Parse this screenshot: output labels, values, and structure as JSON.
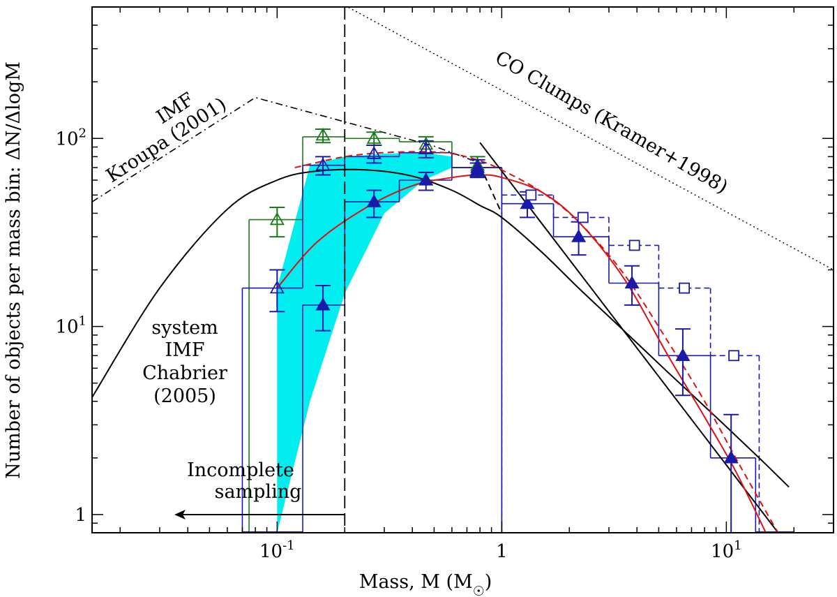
{
  "chart_data": {
    "type": "line",
    "title": "",
    "xlabel": "Mass, M (M",
    "xlabel_sub": "☉",
    "xlabel_close": ")",
    "ylabel": "Number of objects per mass bin: ΔN/ΔlogM",
    "xscale": "log",
    "yscale": "log",
    "xlim": [
      0.015,
      30
    ],
    "ylim": [
      0.8,
      500
    ],
    "x_ticks": [
      {
        "value": 0.1,
        "base": "10",
        "exp": "-1"
      },
      {
        "value": 1,
        "base": "1",
        "exp": ""
      },
      {
        "value": 10,
        "base": "10",
        "exp": "1"
      }
    ],
    "y_ticks": [
      {
        "value": 1,
        "base": "1",
        "exp": ""
      },
      {
        "value": 10,
        "base": "10",
        "exp": "1"
      },
      {
        "value": 100,
        "base": "10",
        "exp": "2"
      }
    ],
    "band": {
      "name": "cyan uncertainty band",
      "upper": [
        [
          0.1,
          16
        ],
        [
          0.14,
          72
        ],
        [
          0.2,
          80
        ],
        [
          0.3,
          83
        ],
        [
          0.45,
          84
        ],
        [
          0.6,
          80
        ]
      ],
      "lower": [
        [
          0.6,
          70
        ],
        [
          0.45,
          60
        ],
        [
          0.3,
          40
        ],
        [
          0.2,
          15
        ],
        [
          0.14,
          4
        ],
        [
          0.1,
          0.8
        ]
      ]
    },
    "series": [
      {
        "name": "Chabrier (2005) system IMF",
        "color": "#000000",
        "kind": "curve",
        "points": [
          [
            0.015,
            4.2
          ],
          [
            0.03,
            16
          ],
          [
            0.06,
            42
          ],
          [
            0.1,
            60
          ],
          [
            0.15,
            67
          ],
          [
            0.25,
            68
          ],
          [
            0.4,
            63
          ],
          [
            0.6,
            53
          ],
          [
            0.8,
            44
          ],
          [
            1.0,
            38
          ],
          [
            1.5,
            25
          ],
          [
            2.2,
            16
          ],
          [
            3.5,
            9.5
          ],
          [
            5.5,
            5.7
          ],
          [
            9,
            3.3
          ],
          [
            14,
            2.0
          ],
          [
            19,
            1.4
          ]
        ]
      },
      {
        "name": "Kroupa (2001) IMF",
        "color": "#000000",
        "kind": "dashdot",
        "points": [
          [
            0.015,
            46
          ],
          [
            0.08,
            165
          ],
          [
            0.5,
            91
          ],
          [
            0.8,
            74
          ]
        ]
      },
      {
        "name": "Kroupa lower branch",
        "color": "#000000",
        "kind": "dashed",
        "points": [
          [
            0.8,
            72
          ],
          [
            1.0,
            40
          ]
        ]
      },
      {
        "name": "CO Clumps (Kramer+1998)",
        "color": "#000000",
        "kind": "dotted",
        "points": [
          [
            0.2,
            510
          ],
          [
            30,
            20
          ]
        ]
      },
      {
        "name": "Power-law fit",
        "color": "#000000",
        "kind": "line",
        "points": [
          [
            0.8,
            95
          ],
          [
            17,
            0.8
          ]
        ]
      },
      {
        "name": "Lognormal fit (solid)",
        "color": "#dd1111",
        "kind": "curve",
        "points": [
          [
            0.1,
            16
          ],
          [
            0.15,
            28
          ],
          [
            0.25,
            43
          ],
          [
            0.4,
            56
          ],
          [
            0.6,
            62
          ],
          [
            0.8,
            64
          ],
          [
            1.0,
            62
          ],
          [
            1.5,
            52
          ],
          [
            2.2,
            36
          ],
          [
            3.5,
            18
          ],
          [
            5.5,
            7.0
          ],
          [
            8,
            3.3
          ],
          [
            11,
            1.7
          ],
          [
            15,
            0.8
          ]
        ]
      },
      {
        "name": "Lognormal fit (dashed)",
        "color": "#dd1111",
        "kind": "dashed",
        "points": [
          [
            0.12,
            70
          ],
          [
            0.2,
            80
          ],
          [
            0.3,
            84
          ],
          [
            0.45,
            85
          ],
          [
            0.6,
            83
          ],
          [
            0.8,
            76
          ],
          [
            1.0,
            68
          ],
          [
            1.5,
            52
          ],
          [
            2.2,
            36
          ],
          [
            3.5,
            19
          ],
          [
            5.5,
            8.3
          ],
          [
            8,
            4.0
          ],
          [
            11,
            2.0
          ],
          [
            14,
            1.2
          ],
          [
            17,
            0.8
          ]
        ]
      }
    ],
    "histograms": [
      {
        "name": "Green histogram (open triangles)",
        "color": "#1a7a1a",
        "marker": "open-triangle",
        "dashed": false,
        "bins": [
          [
            0.075,
            0.13,
            37
          ],
          [
            0.13,
            0.2,
            102
          ],
          [
            0.2,
            0.35,
            100
          ],
          [
            0.35,
            0.6,
            96
          ],
          [
            0.6,
            1.0,
            70
          ]
        ],
        "points": [
          [
            0.1,
            37,
            30,
            43
          ],
          [
            0.16,
            104,
            95,
            112
          ],
          [
            0.27,
            100,
            92,
            108
          ],
          [
            0.46,
            93,
            83,
            102
          ],
          [
            0.78,
            72,
            64,
            80
          ]
        ]
      },
      {
        "name": "Blue histogram (open triangles)",
        "color": "#1a1aaa",
        "marker": "open-triangle",
        "dashed": false,
        "bins": [
          [
            0.07,
            0.13,
            16
          ],
          [
            0.13,
            0.2,
            72
          ],
          [
            0.2,
            0.35,
            80
          ],
          [
            0.35,
            0.6,
            84
          ],
          [
            0.6,
            1.0,
            70
          ]
        ],
        "points": [
          [
            0.1,
            16,
            12,
            20
          ],
          [
            0.16,
            72,
            64,
            80
          ],
          [
            0.27,
            83,
            74,
            92
          ],
          [
            0.46,
            88,
            79,
            97
          ],
          [
            0.78,
            70,
            63,
            77
          ]
        ]
      },
      {
        "name": "Blue histogram (filled triangles)",
        "color": "#1a1aaa",
        "marker": "filled-triangle",
        "dashed": false,
        "bins": [
          [
            0.13,
            0.2,
            13
          ],
          [
            0.2,
            0.35,
            46
          ],
          [
            0.35,
            0.6,
            60
          ],
          [
            0.6,
            1.0,
            70
          ],
          [
            1.0,
            1.7,
            45
          ],
          [
            1.7,
            3.0,
            30
          ],
          [
            3.0,
            5.0,
            17
          ],
          [
            5.0,
            8.5,
            7
          ],
          [
            8.5,
            13.5,
            2
          ]
        ],
        "points": [
          [
            0.16,
            13,
            9.5,
            16.5
          ],
          [
            0.27,
            46,
            38,
            53
          ],
          [
            0.46,
            60,
            53,
            66
          ],
          [
            0.78,
            68,
            62,
            74
          ],
          [
            1.3,
            45,
            38,
            52
          ],
          [
            2.2,
            30,
            24,
            36
          ],
          [
            3.8,
            17,
            13,
            21
          ],
          [
            6.4,
            7,
            4.3,
            9.7
          ],
          [
            10.5,
            2,
            0.8,
            3.4
          ]
        ]
      },
      {
        "name": "Blue dashed histogram (open squares)",
        "color": "#1a1aaa",
        "marker": "open-square",
        "dashed": true,
        "bins": [
          [
            1.0,
            1.7,
            50
          ],
          [
            1.7,
            3.0,
            38
          ],
          [
            3.0,
            5.0,
            27
          ],
          [
            5.0,
            8.5,
            16
          ],
          [
            8.5,
            14,
            7
          ]
        ],
        "points": [
          [
            1.35,
            50
          ],
          [
            2.3,
            38
          ],
          [
            3.9,
            27
          ],
          [
            6.5,
            16
          ],
          [
            10.8,
            7
          ]
        ]
      }
    ],
    "completeness_limit": 0.2,
    "annotations": {
      "kroupa_line1": "IMF",
      "kroupa_line2": "Kroupa (2001)",
      "clumps": "CO Clumps (Kramer+1998)",
      "chabrier": [
        "system",
        "IMF",
        "Chabrier",
        "(2005)"
      ],
      "incomplete": [
        "Incomplete",
        "sampling"
      ]
    }
  }
}
